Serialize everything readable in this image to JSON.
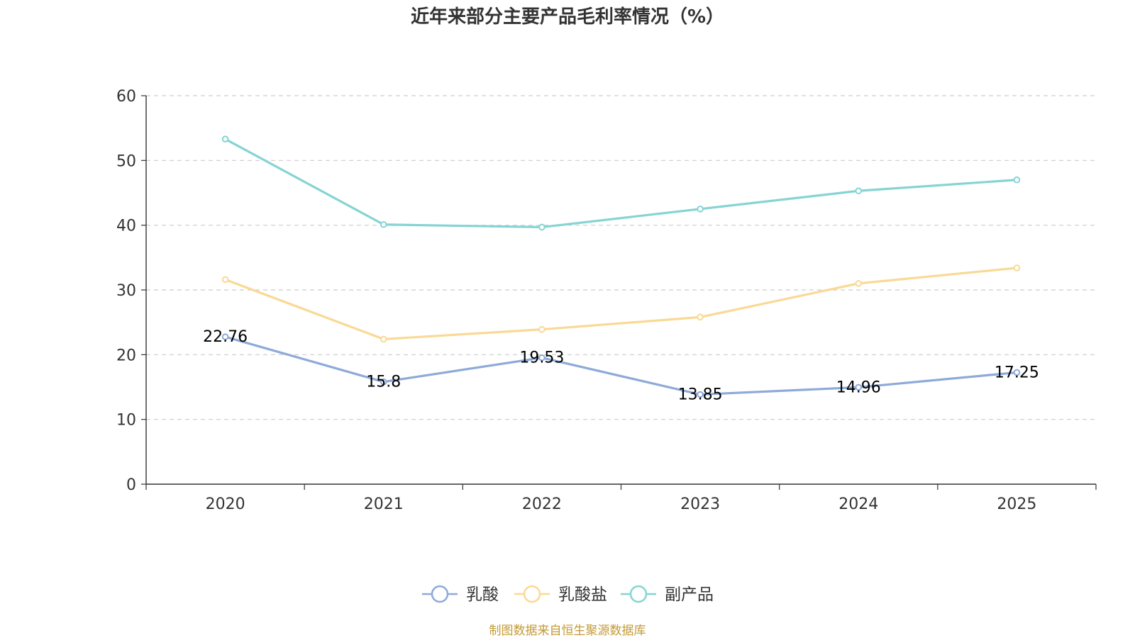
{
  "chart_data": {
    "type": "line",
    "title": "近年来部分主要产品毛利率情况（%）",
    "categories": [
      "2020",
      "2021",
      "2022",
      "2023",
      "2024",
      "2025"
    ],
    "ylim": [
      0,
      60
    ],
    "yticks": [
      0,
      10,
      20,
      30,
      40,
      50,
      60
    ],
    "grid": true,
    "legend_position": "bottom",
    "series": [
      {
        "name": "乳酸",
        "color": "#8eaad8",
        "values": [
          22.76,
          15.8,
          19.53,
          13.85,
          14.96,
          17.25
        ],
        "labels": [
          "22.76",
          "15.8",
          "19.53",
          "13.85",
          "14.96",
          "17.25"
        ]
      },
      {
        "name": "乳酸盐",
        "color": "#f9d995",
        "values": [
          31.6,
          22.4,
          23.9,
          25.8,
          31.0,
          33.4
        ]
      },
      {
        "name": "副产品",
        "color": "#85d4d4",
        "values": [
          53.3,
          40.1,
          39.7,
          42.5,
          45.3,
          47.0
        ]
      }
    ],
    "source": "制图数据来自恒生聚源数据库",
    "source_color": "#c39a35"
  }
}
